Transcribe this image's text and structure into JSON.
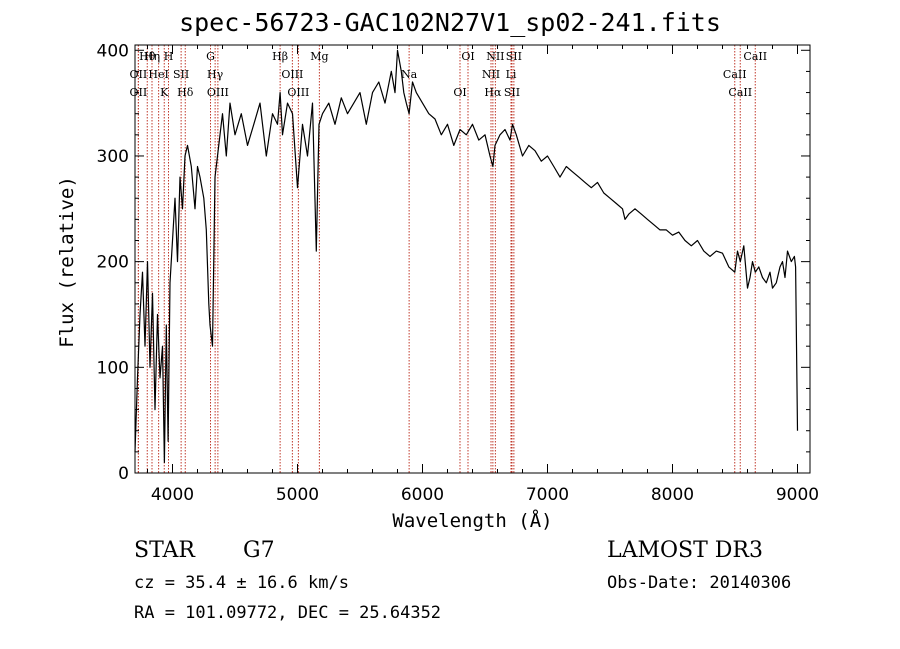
{
  "chart_data": {
    "type": "line",
    "title": "spec-56723-GAC102N27V1_sp02-241.fits",
    "xlabel": "Wavelength (Å)",
    "ylabel": "Flux (relative)",
    "xlim": [
      3700,
      9100
    ],
    "ylim": [
      0,
      405
    ],
    "xticks": [
      4000,
      5000,
      6000,
      7000,
      8000,
      9000
    ],
    "yticks": [
      0,
      100,
      200,
      300,
      400
    ],
    "series": [
      {
        "name": "flux",
        "x": [
          3700,
          3720,
          3740,
          3760,
          3780,
          3800,
          3820,
          3840,
          3860,
          3880,
          3900,
          3920,
          3935,
          3950,
          3965,
          3980,
          4000,
          4020,
          4040,
          4060,
          4080,
          4100,
          4120,
          4150,
          4180,
          4200,
          4220,
          4250,
          4270,
          4290,
          4300,
          4320,
          4340,
          4360,
          4380,
          4400,
          4430,
          4460,
          4500,
          4550,
          4600,
          4650,
          4700,
          4750,
          4800,
          4840,
          4861,
          4880,
          4920,
          4960,
          5000,
          5040,
          5080,
          5120,
          5150,
          5172,
          5200,
          5250,
          5300,
          5350,
          5400,
          5450,
          5500,
          5550,
          5600,
          5650,
          5700,
          5750,
          5780,
          5800,
          5830,
          5850,
          5870,
          5893,
          5920,
          5950,
          6000,
          6050,
          6100,
          6150,
          6200,
          6250,
          6300,
          6350,
          6400,
          6450,
          6500,
          6540,
          6563,
          6580,
          6620,
          6660,
          6700,
          6720,
          6750,
          6800,
          6850,
          6900,
          6950,
          7000,
          7050,
          7100,
          7150,
          7200,
          7250,
          7300,
          7350,
          7400,
          7450,
          7500,
          7550,
          7600,
          7620,
          7650,
          7700,
          7750,
          7800,
          7850,
          7900,
          7950,
          8000,
          8050,
          8100,
          8150,
          8200,
          8250,
          8300,
          8350,
          8400,
          8450,
          8498,
          8520,
          8542,
          8570,
          8600,
          8620,
          8640,
          8662,
          8690,
          8720,
          8750,
          8780,
          8800,
          8830,
          8860,
          8880,
          8900,
          8920,
          8950,
          8975,
          8985,
          9000
        ],
        "values": [
          20,
          90,
          150,
          190,
          120,
          200,
          100,
          170,
          60,
          150,
          90,
          120,
          10,
          140,
          30,
          180,
          220,
          260,
          200,
          280,
          250,
          300,
          310,
          290,
          250,
          290,
          280,
          260,
          230,
          160,
          140,
          120,
          280,
          300,
          320,
          340,
          300,
          350,
          320,
          340,
          310,
          330,
          350,
          300,
          340,
          330,
          360,
          320,
          350,
          340,
          270,
          330,
          300,
          350,
          210,
          330,
          340,
          350,
          330,
          355,
          340,
          350,
          360,
          330,
          360,
          370,
          350,
          380,
          360,
          400,
          380,
          360,
          350,
          340,
          370,
          360,
          350,
          340,
          335,
          320,
          330,
          310,
          325,
          320,
          330,
          315,
          320,
          300,
          290,
          310,
          320,
          325,
          315,
          330,
          320,
          300,
          310,
          305,
          295,
          300,
          290,
          280,
          290,
          285,
          280,
          275,
          270,
          275,
          265,
          260,
          255,
          250,
          240,
          245,
          250,
          245,
          240,
          235,
          230,
          230,
          225,
          228,
          220,
          215,
          220,
          210,
          205,
          210,
          208,
          195,
          190,
          210,
          200,
          215,
          175,
          185,
          200,
          190,
          195,
          185,
          180,
          190,
          175,
          180,
          195,
          200,
          185,
          210,
          200,
          205,
          195,
          40
        ]
      }
    ],
    "line_marks": [
      {
        "label": "Hθ",
        "wl": 3798
      },
      {
        "label": "OII",
        "wl": 3727
      },
      {
        "label": "OII",
        "wl": 3727
      },
      {
        "label": "Hη",
        "wl": 3836
      },
      {
        "label": "HeI",
        "wl": 3889
      },
      {
        "label": "K",
        "wl": 3934
      },
      {
        "label": "H",
        "wl": 3968
      },
      {
        "label": "SII",
        "wl": 4069
      },
      {
        "label": "Hδ",
        "wl": 4102
      },
      {
        "label": "G",
        "wl": 4304
      },
      {
        "label": "Hγ",
        "wl": 4341
      },
      {
        "label": "OIII",
        "wl": 4363
      },
      {
        "label": "Hβ",
        "wl": 4861
      },
      {
        "label": "OIII",
        "wl": 4959
      },
      {
        "label": "OIII",
        "wl": 5007
      },
      {
        "label": "Mg",
        "wl": 5175
      },
      {
        "label": "Na",
        "wl": 5893
      },
      {
        "label": "OI",
        "wl": 6300
      },
      {
        "label": "OI",
        "wl": 6364
      },
      {
        "label": "NII",
        "wl": 6548
      },
      {
        "label": "Hα",
        "wl": 6563
      },
      {
        "label": "NII",
        "wl": 6583
      },
      {
        "label": "Li",
        "wl": 6708
      },
      {
        "label": "SII",
        "wl": 6716
      },
      {
        "label": "SII",
        "wl": 6731
      },
      {
        "label": "CaII",
        "wl": 8498
      },
      {
        "label": "CaII",
        "wl": 8542
      },
      {
        "label": "CaII",
        "wl": 8662
      }
    ]
  },
  "info": {
    "obj_class": "STAR",
    "obj_subclass": "G7",
    "survey": "LAMOST DR3",
    "cz": "cz = 35.4 ± 16.6 km/s",
    "obs_date": "Obs-Date: 20140306",
    "radec": "RA = 101.09772, DEC =  25.64352"
  }
}
